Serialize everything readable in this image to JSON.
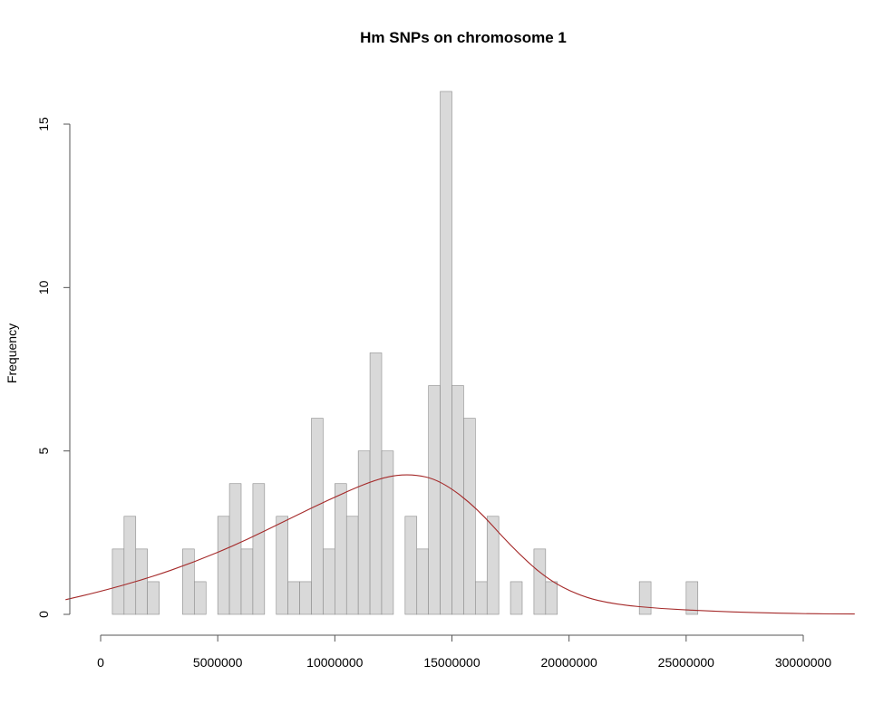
{
  "chart_data": {
    "type": "bar",
    "title": "Hm SNPs on chromosome 1",
    "xlabel": "",
    "ylabel": "Frequency",
    "xlim": [
      0,
      30000000
    ],
    "ylim": [
      0,
      15
    ],
    "x_ticks": [
      "0",
      "5000000",
      "10000000",
      "15000000",
      "20000000",
      "25000000",
      "30000000"
    ],
    "y_ticks": [
      "0",
      "5",
      "10",
      "15"
    ],
    "bin_width": 500000,
    "bins_start": [
      500000,
      1000000,
      1500000,
      2000000,
      3500000,
      4000000,
      5000000,
      5500000,
      6000000,
      6500000,
      7500000,
      8000000,
      8500000,
      9000000,
      9500000,
      10000000,
      10500000,
      11000000,
      11500000,
      12000000,
      13000000,
      13500000,
      14000000,
      14500000,
      15000000,
      15500000,
      16000000,
      16500000,
      17500000,
      18500000,
      19000000,
      23000000,
      25000000
    ],
    "values": [
      2,
      3,
      2,
      1,
      2,
      1,
      3,
      4,
      2,
      4,
      3,
      1,
      1,
      6,
      2,
      4,
      3,
      5,
      8,
      5,
      3,
      2,
      7,
      16,
      7,
      6,
      1,
      3,
      1,
      2,
      1,
      1,
      1
    ],
    "density_curve": {
      "color": "#a52a2a",
      "points": [
        [
          -1500000,
          0.45
        ],
        [
          0,
          0.7
        ],
        [
          2000000,
          1.1
        ],
        [
          4000000,
          1.6
        ],
        [
          6000000,
          2.2
        ],
        [
          8000000,
          2.9
        ],
        [
          10000000,
          3.6
        ],
        [
          12000000,
          4.2
        ],
        [
          13300000,
          4.3
        ],
        [
          14500000,
          4.1
        ],
        [
          16000000,
          3.3
        ],
        [
          17500000,
          2.1
        ],
        [
          19000000,
          1.1
        ],
        [
          20500000,
          0.55
        ],
        [
          22000000,
          0.3
        ],
        [
          24000000,
          0.17
        ],
        [
          26000000,
          0.1
        ],
        [
          28000000,
          0.05
        ],
        [
          30000000,
          0.02
        ],
        [
          32200000,
          0.01
        ]
      ]
    }
  }
}
